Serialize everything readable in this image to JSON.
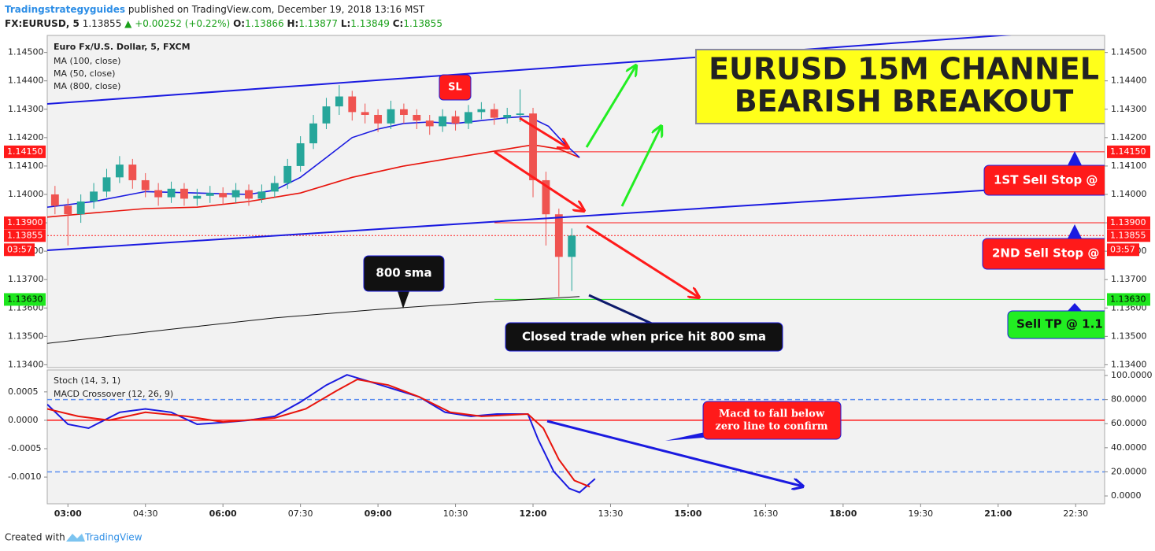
{
  "header": {
    "author": "Tradingstrategyguides",
    "published": "published on TradingView.com, December 19, 2018 13:16 MST",
    "symbol": "FX:EURUSD, 5",
    "last": "1.13855",
    "change": "▲ +0.00252 (+0.22%)",
    "ohlc": [
      {
        "key": "O:",
        "value": "1.13866"
      },
      {
        "key": "H:",
        "value": "1.13877"
      },
      {
        "key": "L:",
        "value": "1.13849"
      },
      {
        "key": "C:",
        "value": "1.13855"
      }
    ]
  },
  "footer": {
    "text": "Created with",
    "brand": "TradingView"
  },
  "annotations": {
    "title_line1": "EURUSD 15M CHANNEL",
    "title_line2": "BEARISH BREAKOUT",
    "sl": "SL",
    "sma_label": "800 sma",
    "closed": "Closed trade when price hit 800 sma",
    "sell_stop_1": "1ST Sell Stop @",
    "sell_stop_2": "2ND Sell Stop @",
    "sell_tp": "Sell TP @ 1.1",
    "macd_note": [
      "Macd to fall below",
      "zero line to confirm"
    ]
  },
  "chart_data": [
    {
      "type": "candlestick",
      "title": "Euro Fx/U.S. Dollar, 5, FXCM",
      "x": [
        2.75,
        3,
        3.25,
        3.5,
        3.75,
        4,
        4.25,
        4.5,
        4.75,
        5,
        5.25,
        5.5,
        5.75,
        6,
        6.25,
        6.5,
        6.75,
        7,
        7.25,
        7.5,
        7.75,
        8,
        8.25,
        8.5,
        8.75,
        9,
        9.25,
        9.5,
        9.75,
        10,
        10.25,
        10.5,
        10.75,
        11,
        11.25,
        11.5,
        11.75,
        12,
        12.25,
        12.5,
        12.75
      ],
      "open": [
        1.14,
        1.1396,
        1.1393,
        1.13975,
        1.1401,
        1.1406,
        1.14105,
        1.1405,
        1.14015,
        1.1399,
        1.1402,
        1.13985,
        1.13995,
        1.14005,
        1.1399,
        1.14015,
        1.13985,
        1.1401,
        1.1404,
        1.141,
        1.1418,
        1.1425,
        1.1431,
        1.14345,
        1.1429,
        1.1428,
        1.1425,
        1.143,
        1.1428,
        1.1426,
        1.1424,
        1.14275,
        1.1425,
        1.1429,
        1.143,
        1.1427,
        1.1428,
        1.14285,
        1.1405,
        1.1393,
        1.1378
      ],
      "high": [
        1.1403,
        1.13985,
        1.14,
        1.1404,
        1.1409,
        1.14135,
        1.14125,
        1.14075,
        1.1404,
        1.14045,
        1.1404,
        1.1402,
        1.1403,
        1.14025,
        1.1404,
        1.14035,
        1.14035,
        1.14065,
        1.14125,
        1.14205,
        1.1428,
        1.1434,
        1.14385,
        1.14365,
        1.1432,
        1.143,
        1.1433,
        1.1432,
        1.143,
        1.1428,
        1.143,
        1.14295,
        1.14315,
        1.14325,
        1.1432,
        1.14305,
        1.1437,
        1.14305,
        1.1408,
        1.1395,
        1.1388
      ],
      "low": [
        1.1393,
        1.1382,
        1.139,
        1.1395,
        1.1399,
        1.1404,
        1.1402,
        1.1399,
        1.1396,
        1.1397,
        1.1396,
        1.1396,
        1.1397,
        1.13965,
        1.1397,
        1.1396,
        1.1397,
        1.1399,
        1.1402,
        1.1408,
        1.1416,
        1.1423,
        1.1428,
        1.1426,
        1.1425,
        1.1422,
        1.1423,
        1.1425,
        1.1423,
        1.1421,
        1.1422,
        1.14225,
        1.1423,
        1.14265,
        1.14245,
        1.1425,
        1.14255,
        1.1399,
        1.1382,
        1.1364,
        1.1366
      ],
      "close": [
        1.1396,
        1.1393,
        1.13975,
        1.1401,
        1.1406,
        1.14105,
        1.1405,
        1.14015,
        1.1399,
        1.1402,
        1.13985,
        1.13995,
        1.14005,
        1.1399,
        1.14015,
        1.13985,
        1.1401,
        1.1404,
        1.141,
        1.1418,
        1.1425,
        1.1431,
        1.14345,
        1.1429,
        1.1428,
        1.1425,
        1.143,
        1.1428,
        1.1426,
        1.1424,
        1.14275,
        1.1425,
        1.1429,
        1.143,
        1.1427,
        1.1428,
        1.14285,
        1.1405,
        1.1393,
        1.1378,
        1.13855
      ],
      "up_color": "#26a69a",
      "down_color": "#ef5350",
      "lines": [
        {
          "name": "MA (100, close)",
          "color": "#e8140c",
          "x": [
            2.6,
            3.5,
            4.5,
            5.5,
            6.5,
            7.5,
            8.5,
            9.5,
            10.5,
            11.5,
            12,
            12.5,
            12.9
          ],
          "values": [
            1.1392,
            1.13935,
            1.1395,
            1.13955,
            1.13975,
            1.14005,
            1.1406,
            1.141,
            1.1413,
            1.1416,
            1.14175,
            1.1416,
            1.1413
          ]
        },
        {
          "name": "MA (50, close)",
          "color": "#1a1ae0",
          "x": [
            2.6,
            3.5,
            4.5,
            5.5,
            6.5,
            7,
            7.5,
            8,
            8.5,
            9,
            9.5,
            10,
            10.5,
            11,
            11.5,
            11.9,
            12.3,
            12.6,
            12.9
          ],
          "values": [
            1.13955,
            1.13975,
            1.1401,
            1.14005,
            1.14,
            1.14015,
            1.1406,
            1.1413,
            1.142,
            1.1423,
            1.1425,
            1.14255,
            1.1425,
            1.1426,
            1.1427,
            1.14275,
            1.1424,
            1.1418,
            1.1413
          ]
        },
        {
          "name": "MA (800, close)",
          "color": "#111111",
          "x": [
            2.6,
            5,
            7,
            9,
            11,
            12.9
          ],
          "values": [
            1.13475,
            1.13525,
            1.13565,
            1.13595,
            1.1362,
            1.1364
          ]
        }
      ],
      "price_lines": [
        {
          "value": 1.1415,
          "label": "1.14150",
          "color": "#ff1a1a",
          "style": "solid"
        },
        {
          "value": 1.139,
          "label": "1.13900",
          "color": "#ff1a1a",
          "style": "solid"
        },
        {
          "value": 1.13855,
          "label": "1.13855",
          "color": "#ff1a1a",
          "style": "dotted"
        },
        {
          "value": 1.1363,
          "label": "1.13630",
          "color": "#1ee61e",
          "style": "solid"
        }
      ],
      "countdown": "03:57",
      "xlim": [
        2.6,
        23.06
      ],
      "xticks": [
        {
          "value": 3,
          "label": "03:00"
        },
        {
          "value": 4.5,
          "label": "04:30"
        },
        {
          "value": 6,
          "label": "06:00"
        },
        {
          "value": 7.5,
          "label": "07:30"
        },
        {
          "value": 9,
          "label": "09:00"
        },
        {
          "value": 10.5,
          "label": "10:30"
        },
        {
          "value": 12,
          "label": "12:00"
        },
        {
          "value": 13.5,
          "label": "13:30"
        },
        {
          "value": 15,
          "label": "15:00"
        },
        {
          "value": 16.5,
          "label": "16:30"
        },
        {
          "value": 18,
          "label": "18:00"
        },
        {
          "value": 19.5,
          "label": "19:30"
        },
        {
          "value": 21,
          "label": "21:00"
        },
        {
          "value": 22.5,
          "label": "22:30"
        }
      ],
      "ylim": [
        1.1339,
        1.1456
      ],
      "yticks": [
        {
          "value": 1.145,
          "label": "1.14500"
        },
        {
          "value": 1.144,
          "label": "1.14400"
        },
        {
          "value": 1.143,
          "label": "1.14300"
        },
        {
          "value": 1.142,
          "label": "1.14200"
        },
        {
          "value": 1.141,
          "label": "1.14100"
        },
        {
          "value": 1.14,
          "label": "1.14000"
        },
        {
          "value": 1.139,
          "label": "1.13900"
        },
        {
          "value": 1.138,
          "label": "1.13800"
        },
        {
          "value": 1.137,
          "label": "1.13700"
        },
        {
          "value": 1.136,
          "label": "1.13600"
        },
        {
          "value": 1.135,
          "label": "1.13500"
        },
        {
          "value": 1.134,
          "label": "1.13400"
        }
      ],
      "grid": false
    },
    {
      "type": "line",
      "title": "Stoch (14, 3, 1)",
      "subtitle": "MACD Crossover (12, 26, 9)",
      "series": [
        {
          "color": "#1a1ae0",
          "x": [
            2.6,
            3,
            3.4,
            4,
            4.5,
            5,
            5.5,
            6,
            6.5,
            7,
            7.5,
            8,
            8.4,
            8.8,
            9.3,
            9.8,
            10.3,
            10.8,
            11.3,
            11.9,
            12.1,
            12.4,
            12.7,
            12.9,
            13.2
          ],
          "values": [
            0.00028,
            -7e-05,
            -0.00014,
            0.00014,
            0.0002,
            0.00014,
            -7e-05,
            -4e-05,
            0,
            7e-05,
            0.00032,
            0.00062,
            0.0008,
            0.00069,
            0.00055,
            0.00041,
            0.00014,
            7e-05,
            0.00011,
            0.00011,
            -0.00034,
            -0.0009,
            -0.0012,
            -0.00127,
            -0.00103
          ]
        },
        {
          "color": "#e8140c",
          "x": [
            2.6,
            3.2,
            3.8,
            4.5,
            5.3,
            6,
            7,
            7.6,
            8.2,
            8.6,
            9.2,
            9.8,
            10.4,
            11,
            11.9,
            12.2,
            12.5,
            12.8,
            13.1
          ],
          "values": [
            0.0002,
            7e-05,
            0,
            0.00014,
            7e-05,
            -3e-05,
            4e-05,
            0.0002,
            0.00052,
            0.00072,
            0.00062,
            0.00041,
            0.00014,
            7e-05,
            0.00011,
            -0.00014,
            -0.00069,
            -0.00106,
            -0.00117
          ]
        }
      ],
      "hlines": [
        {
          "value": 0,
          "color": "#ff1a1a"
        }
      ],
      "y2hlines": [
        {
          "value": 80,
          "color": "#5b8def"
        },
        {
          "value": 20,
          "color": "#5b8def"
        }
      ],
      "ylim": [
        -0.00147,
        0.000886
      ],
      "yticks": [
        {
          "value": 0.0005,
          "label": "0.0005"
        },
        {
          "value": 0,
          "label": "0.0000"
        },
        {
          "value": -0.0005,
          "label": "-0.0005"
        },
        {
          "value": -0.001,
          "label": "-0.0010"
        }
      ],
      "y2lim": [
        -6.5,
        104.6
      ],
      "y2ticks": [
        {
          "value": 100,
          "label": "100.0000"
        },
        {
          "value": 80,
          "label": "80.0000"
        },
        {
          "value": 60,
          "label": "60.0000"
        },
        {
          "value": 40,
          "label": "40.0000"
        },
        {
          "value": 20,
          "label": "20.0000"
        },
        {
          "value": 0,
          "label": "0.0000"
        }
      ]
    }
  ]
}
